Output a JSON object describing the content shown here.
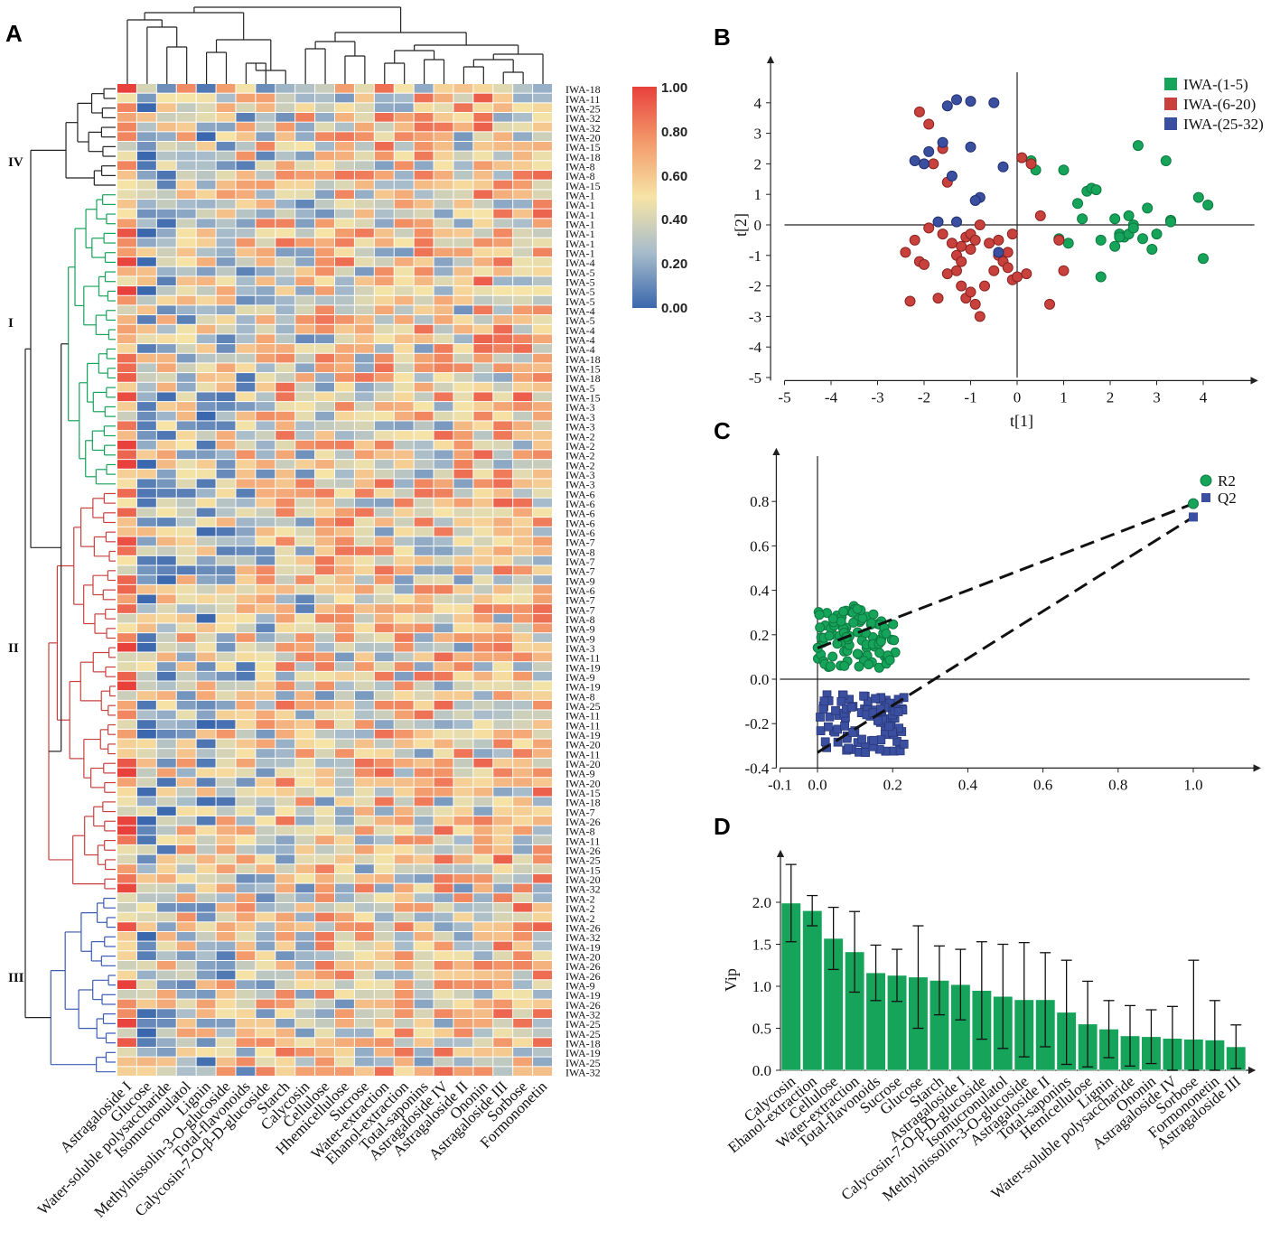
{
  "panels": {
    "a": "A",
    "b": "B",
    "c": "C",
    "d": "D"
  },
  "heatmap": {
    "columns": [
      "Astragaloside I",
      "Glucose",
      "Water-soluble polysaccharide",
      "Isomucronulatol",
      "Lignin",
      "Methylnissolin-3-O-glucoside",
      "Total-flavonoids",
      "Calycosin-7-O-β-D-glucoside",
      "Starch",
      "Calycosin",
      "Cellulose",
      "Hhemicellulose",
      "Sucrose",
      "Water-extraction",
      "Ehanol-extraction",
      "Total-saponins",
      "Astragaloside IV",
      "Astragaloside II",
      "Ononin",
      "Astragaloside III",
      "Sorbose",
      "Formononetin"
    ],
    "rows": [
      "IWA-18",
      "IWA-11",
      "IWA-25",
      "IWA-32",
      "IWA-32",
      "IWA-20",
      "IWA-15",
      "IWA-18",
      "IWA-8",
      "IWA-8",
      "IWA-15",
      "IWA-1",
      "IWA-1",
      "IWA-1",
      "IWA-1",
      "IWA-1",
      "IWA-1",
      "IWA-1",
      "IWA-4",
      "IWA-5",
      "IWA-5",
      "IWA-5",
      "IWA-5",
      "IWA-4",
      "IWA-5",
      "IWA-4",
      "IWA-4",
      "IWA-4",
      "IWA-18",
      "IWA-15",
      "IWA-18",
      "IWA-5",
      "IWA-15",
      "IWA-3",
      "IWA-3",
      "IWA-3",
      "IWA-2",
      "IWA-2",
      "IWA-2",
      "IWA-2",
      "IWA-3",
      "IWA-3",
      "IWA-6",
      "IWA-6",
      "IWA-6",
      "IWA-6",
      "IWA-6",
      "IWA-7",
      "IWA-8",
      "IWA-7",
      "IWA-7",
      "IWA-9",
      "IWA-6",
      "IWA-7",
      "IWA-7",
      "IWA-8",
      "IWA-9",
      "IWA-9",
      "IWA-3",
      "IWA-11",
      "IWA-19",
      "IWA-9",
      "IWA-19",
      "IWA-8",
      "IWA-25",
      "IWA-11",
      "IWA-11",
      "IWA-19",
      "IWA-20",
      "IWA-11",
      "IWA-20",
      "IWA-9",
      "IWA-20",
      "IWA-15",
      "IWA-18",
      "IWA-7",
      "IWA-26",
      "IWA-8",
      "IWA-11",
      "IWA-26",
      "IWA-25",
      "IWA-15",
      "IWA-20",
      "IWA-32",
      "IWA-2",
      "IWA-2",
      "IWA-2",
      "IWA-26",
      "IWA-32",
      "IWA-19",
      "IWA-20",
      "IWA-26",
      "IWA-26",
      "IWA-9",
      "IWA-19",
      "IWA-26",
      "IWA-32",
      "IWA-25",
      "IWA-25",
      "IWA-18",
      "IWA-19",
      "IWA-25",
      "IWA-32"
    ],
    "cluster_labels": [
      "IV",
      "I",
      "II",
      "III"
    ],
    "colorbar": {
      "ticks": [
        "1.00",
        "0.80",
        "0.60",
        "0.40",
        "0.20",
        "0.00"
      ],
      "colors": [
        "#e8413b",
        "#f39a6b",
        "#f6e4a6",
        "#a7bccb",
        "#3a67ad"
      ]
    }
  },
  "scores": {
    "xlabel": "t[1]",
    "ylabel": "t[2]",
    "xticks": [
      "-5",
      "-4",
      "-3",
      "-2",
      "-1",
      "0",
      "1",
      "2",
      "3",
      "4"
    ],
    "yticks": [
      "4",
      "3",
      "2",
      "1",
      "0",
      "-1",
      "-2",
      "-3",
      "-4",
      "-5"
    ],
    "legend": [
      {
        "label": "IWA-(1-5)",
        "color": "#16a35a"
      },
      {
        "label": "IWA-(6-20)",
        "color": "#c8413d"
      },
      {
        "label": "IWA-(25-32)",
        "color": "#3b4fa0"
      }
    ]
  },
  "chart_data": [
    {
      "type": "heatmap",
      "title": "",
      "xlabel": "",
      "ylabel": "",
      "range": [
        0,
        1
      ]
    },
    {
      "type": "scatter",
      "xlabel": "t[1]",
      "ylabel": "t[2]",
      "xlim": [
        -5,
        5
      ],
      "ylim": [
        -5,
        4.8
      ],
      "series": [
        {
          "name": "IWA-(1-5)",
          "x": [
            0.3,
            0.4,
            1.0,
            1.3,
            1.4,
            1.5,
            1.6,
            1.7,
            1.8,
            2.1,
            2.2,
            2.3,
            2.4,
            2.5,
            2.6,
            2.8,
            3.0,
            3.2,
            3.3,
            3.9,
            4.0,
            4.1,
            0.9,
            1.1,
            1.8,
            2.1,
            2.2,
            2.4,
            2.5,
            2.7,
            2.9,
            3.3
          ],
          "y": [
            2.1,
            1.8,
            1.8,
            0.7,
            0.2,
            1.1,
            1.2,
            1.15,
            -0.5,
            0.2,
            -0.3,
            -0.4,
            0.3,
            0.0,
            2.6,
            0.55,
            -0.3,
            2.1,
            0.15,
            0.9,
            -1.1,
            0.65,
            -0.45,
            -0.6,
            -1.7,
            -0.7,
            -0.4,
            -0.3,
            -0.1,
            -0.45,
            -0.8,
            0.1
          ]
        },
        {
          "name": "IWA-(6-20)",
          "x": [
            -2.1,
            -1.9,
            -1.6,
            -1.5,
            -1.8,
            -2.2,
            -2.4,
            -2.1,
            -2.0,
            -1.7,
            -1.5,
            -1.3,
            -1.2,
            -1.1,
            -1.0,
            -0.9,
            -0.8,
            -0.7,
            -0.5,
            -0.4,
            -0.3,
            -0.2,
            -0.1,
            0.0,
            0.1,
            0.3,
            0.5,
            0.7,
            0.9,
            1.0,
            -1.4,
            -1.2,
            -1.1,
            -1.0,
            -0.9,
            -1.3,
            -1.2,
            -1.0,
            -0.6,
            -0.4,
            -0.2,
            -0.1,
            0.2,
            -0.8,
            -1.6,
            -1.9,
            -2.3
          ],
          "y": [
            3.7,
            3.3,
            2.5,
            1.4,
            2.0,
            -0.5,
            -0.9,
            -1.2,
            -1.3,
            -2.4,
            -1.6,
            -1.5,
            -2.0,
            -2.4,
            -2.2,
            -2.6,
            -3.0,
            -2.0,
            -1.5,
            -1.0,
            -1.2,
            -1.4,
            -1.8,
            -1.7,
            2.2,
            2.0,
            0.3,
            -2.6,
            -0.5,
            -1.5,
            -0.6,
            -0.7,
            -0.4,
            -0.3,
            -0.5,
            -1.0,
            -1.2,
            -0.8,
            -0.6,
            -0.5,
            -0.9,
            -0.3,
            -1.6,
            0.0,
            -0.3,
            -0.1,
            -2.5
          ]
        },
        {
          "name": "IWA-(25-32)",
          "x": [
            -1.3,
            -1.5,
            -1.0,
            -1.6,
            -2.0,
            -1.9,
            -2.2,
            -1.4,
            -0.5,
            -0.8,
            -1.7,
            -1.0,
            -0.3,
            -0.4,
            -1.3,
            -0.9
          ],
          "y": [
            4.1,
            3.9,
            4.05,
            2.7,
            2.0,
            2.4,
            2.1,
            1.6,
            4.0,
            0.9,
            0.1,
            2.55,
            1.9,
            -0.9,
            0.1,
            0.8
          ]
        }
      ]
    },
    {
      "type": "scatter",
      "title": "",
      "xlabel": "",
      "ylabel": "",
      "xlim": [
        -0.1,
        1.15
      ],
      "ylim": [
        -0.4,
        0.95
      ],
      "xticks": [
        "-0.1",
        "0.0",
        "0.2",
        "0.4",
        "0.6",
        "0.8",
        "1.0"
      ],
      "yticks": [
        "0.8",
        "0.6",
        "0.4",
        "0.2",
        "0.0",
        "-0.2",
        "-0.4"
      ],
      "series": [
        {
          "name": "R2",
          "marker": "circle",
          "color": "#16a35a",
          "end_point": [
            1.0,
            0.79
          ],
          "regression_line": [
            [
              0.0,
              0.14
            ],
            [
              1.0,
              0.79
            ]
          ]
        },
        {
          "name": "Q2",
          "marker": "square",
          "color": "#3b4fa0",
          "end_point": [
            1.0,
            0.73
          ],
          "regression_line": [
            [
              0.0,
              -0.33
            ],
            [
              1.0,
              0.73
            ]
          ]
        }
      ]
    },
    {
      "type": "bar",
      "xlabel": "",
      "ylabel": "Vip",
      "ylim": [
        0,
        2.5
      ],
      "yticks": [
        "0.0",
        "0.5",
        "1.0",
        "1.5",
        "2.0"
      ],
      "categories": [
        "Calycosin",
        "Ehanol-extraction",
        "Cellulose",
        "Water-extraction",
        "Total-flavonoids",
        "Sucrose",
        "Glucose",
        "Starch",
        "Astragaloside I",
        "Calycosin-7-O-β-D-glucoside",
        "Isomucronulatol",
        "Methylnissolin-3-O-glucoside",
        "Astragaloside II",
        "Total-saponins",
        "Hemicellulose",
        "Lignin",
        "Water-soluble polysaccharide",
        "Ononin",
        "Astragaloside IV",
        "Sorbose",
        "Formononetin",
        "Astragaloside III"
      ],
      "values": [
        1.99,
        1.9,
        1.57,
        1.41,
        1.16,
        1.13,
        1.11,
        1.07,
        1.02,
        0.95,
        0.88,
        0.84,
        0.84,
        0.69,
        0.55,
        0.49,
        0.41,
        0.4,
        0.38,
        0.37,
        0.36,
        0.28
      ],
      "errors": [
        0.46,
        0.18,
        0.37,
        0.48,
        0.33,
        0.31,
        0.61,
        0.41,
        0.42,
        0.58,
        0.62,
        0.68,
        0.56,
        0.62,
        0.51,
        0.34,
        0.36,
        0.32,
        0.38,
        0.94,
        0.47,
        0.26
      ],
      "color": "#16a35a"
    }
  ]
}
